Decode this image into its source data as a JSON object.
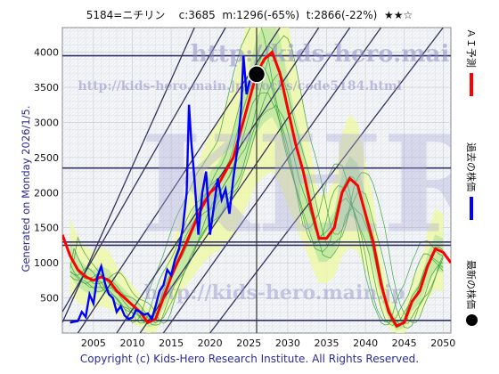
{
  "header": {
    "code_name": "5184=ニチリン",
    "current": "c:3685",
    "min": "m:1296(-65%)",
    "target": "t:2866(-22%)",
    "rating": "★★☆"
  },
  "generated": "Generated on Monday 2026/1/5.",
  "copyright": "Copyright (c) Kids-Hero Research Institute. All Rights Reserved.",
  "watermark": {
    "url1": "http://kids-hero.main.jp/",
    "url2": "http://kids-hero.main.jp/stocks/code5184.html",
    "big": "KHRI",
    "url3": "http://kids-hero.main.jp"
  },
  "legend": [
    {
      "label": "ＡＩ予測",
      "color": "#ff0000",
      "kind": "line"
    },
    {
      "label": "過去の株価",
      "color": "#0000ff",
      "kind": "line"
    },
    {
      "label": "最新の株価",
      "color": "#000000",
      "kind": "dot"
    }
  ],
  "chart_data": {
    "type": "line",
    "xlim": [
      2001,
      2051
    ],
    "ylim": [
      0,
      4350
    ],
    "x_ticks": [
      2005,
      2010,
      2015,
      2020,
      2025,
      2030,
      2035,
      2040,
      2045,
      2050
    ],
    "y_ticks": [
      500,
      1000,
      1500,
      2000,
      2500,
      3000,
      3500,
      4000
    ],
    "horizontal_levels": [
      3950,
      2350,
      1296,
      1250,
      180
    ],
    "current_point": {
      "x": 2026.0,
      "y": 3685
    },
    "series": [
      {
        "name": "過去の株価",
        "color": "#0000ff",
        "points": [
          [
            2002,
            150
          ],
          [
            2003,
            170
          ],
          [
            2003.5,
            300
          ],
          [
            2004,
            230
          ],
          [
            2004.5,
            550
          ],
          [
            2005,
            420
          ],
          [
            2005.5,
            800
          ],
          [
            2006,
            950
          ],
          [
            2006.5,
            700
          ],
          [
            2007,
            550
          ],
          [
            2007.5,
            500
          ],
          [
            2008,
            300
          ],
          [
            2008.5,
            380
          ],
          [
            2009,
            250
          ],
          [
            2009.5,
            200
          ],
          [
            2010,
            220
          ],
          [
            2010.5,
            330
          ],
          [
            2011,
            300
          ],
          [
            2011.5,
            260
          ],
          [
            2012,
            280
          ],
          [
            2012.5,
            200
          ],
          [
            2013,
            380
          ],
          [
            2013.5,
            600
          ],
          [
            2014,
            680
          ],
          [
            2014.5,
            900
          ],
          [
            2015,
            820
          ],
          [
            2015.5,
            1050
          ],
          [
            2016,
            1200
          ],
          [
            2016.5,
            1500
          ],
          [
            2017,
            2000
          ],
          [
            2017.3,
            3250
          ],
          [
            2017.6,
            2700
          ],
          [
            2018,
            2200
          ],
          [
            2018.5,
            1400
          ],
          [
            2019,
            2000
          ],
          [
            2019.5,
            2300
          ],
          [
            2020,
            1400
          ],
          [
            2020.5,
            1800
          ],
          [
            2021,
            2200
          ],
          [
            2021.5,
            1900
          ],
          [
            2022,
            2050
          ],
          [
            2022.5,
            1700
          ],
          [
            2023,
            2200
          ],
          [
            2023.5,
            2600
          ],
          [
            2024,
            3200
          ],
          [
            2024.3,
            3950
          ],
          [
            2024.7,
            3400
          ],
          [
            2025,
            3550
          ],
          [
            2025.5,
            3700
          ],
          [
            2026,
            3685
          ]
        ]
      },
      {
        "name": "ＡＩ予測",
        "color": "#ff0000",
        "points": [
          [
            2001,
            1400
          ],
          [
            2002,
            1100
          ],
          [
            2003,
            900
          ],
          [
            2004,
            800
          ],
          [
            2005,
            750
          ],
          [
            2006,
            800
          ],
          [
            2007,
            750
          ],
          [
            2008,
            600
          ],
          [
            2009,
            500
          ],
          [
            2010,
            400
          ],
          [
            2011,
            300
          ],
          [
            2012,
            150
          ],
          [
            2013,
            200
          ],
          [
            2014,
            500
          ],
          [
            2015,
            800
          ],
          [
            2016,
            1050
          ],
          [
            2017,
            1300
          ],
          [
            2018,
            1550
          ],
          [
            2019,
            1800
          ],
          [
            2020,
            2000
          ],
          [
            2021,
            2100
          ],
          [
            2022,
            2300
          ],
          [
            2023,
            2500
          ],
          [
            2024,
            2900
          ],
          [
            2025,
            3300
          ],
          [
            2026,
            3700
          ],
          [
            2027,
            3900
          ],
          [
            2028,
            4000
          ],
          [
            2029,
            3700
          ],
          [
            2030,
            3200
          ],
          [
            2031,
            2700
          ],
          [
            2032,
            2300
          ],
          [
            2033,
            1800
          ],
          [
            2034,
            1350
          ],
          [
            2035,
            1350
          ],
          [
            2036,
            1500
          ],
          [
            2037,
            2000
          ],
          [
            2038,
            2200
          ],
          [
            2039,
            2100
          ],
          [
            2040,
            1700
          ],
          [
            2041,
            1300
          ],
          [
            2042,
            700
          ],
          [
            2043,
            300
          ],
          [
            2044,
            100
          ],
          [
            2045,
            150
          ],
          [
            2046,
            450
          ],
          [
            2047,
            600
          ],
          [
            2048,
            950
          ],
          [
            2049,
            1200
          ],
          [
            2050,
            1150
          ],
          [
            2051,
            1000
          ]
        ]
      }
    ]
  }
}
